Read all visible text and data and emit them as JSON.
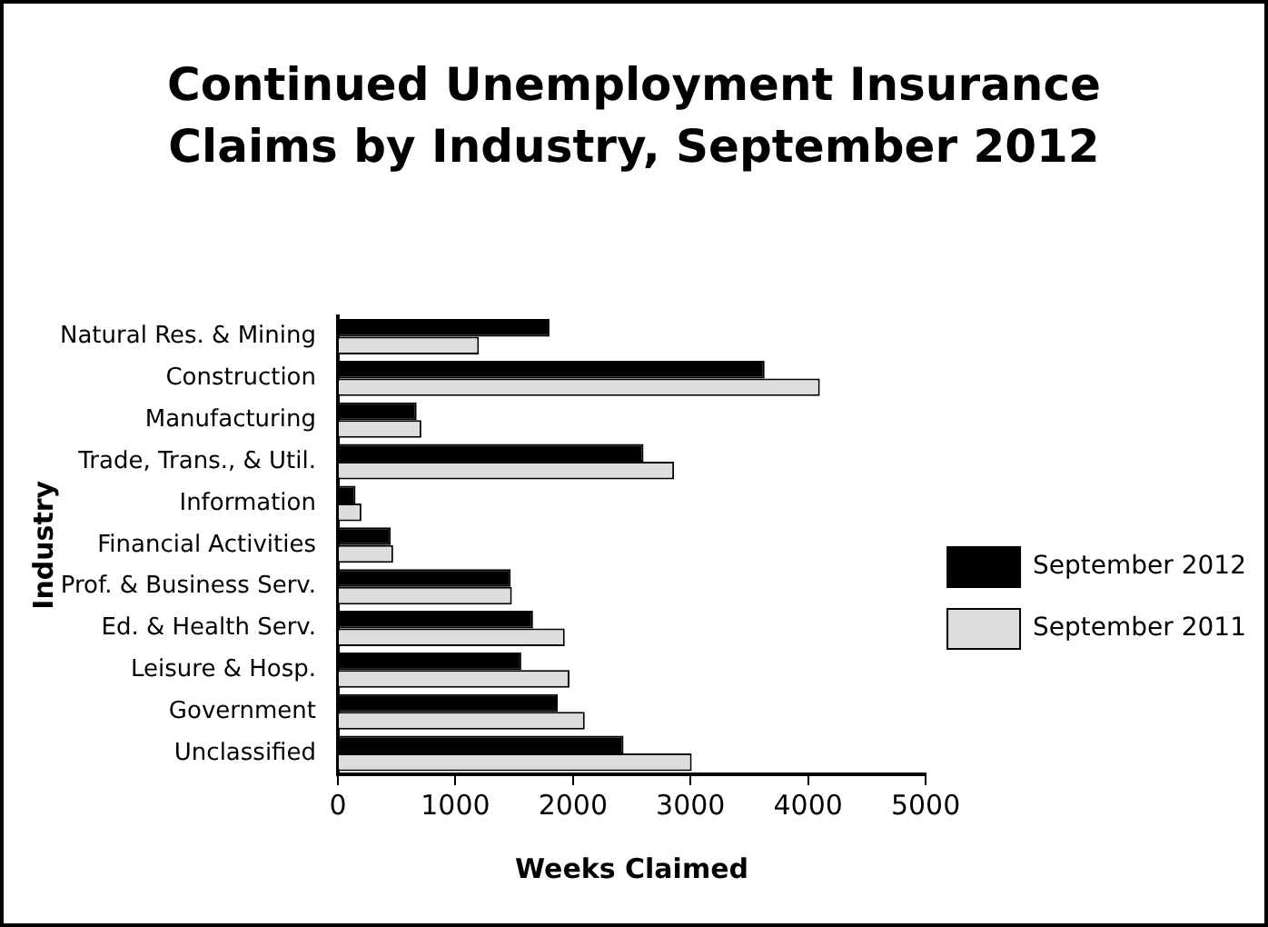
{
  "chart_data": {
    "type": "bar",
    "orientation": "horizontal",
    "title": "Continued Unemployment Insurance Claims by Industry, September 2012",
    "xlabel": "Weeks Claimed",
    "ylabel": "Industry",
    "categories": [
      "Natural Res. & Mining",
      "Construction",
      "Manufacturing",
      "Trade, Trans., & Util.",
      "Information",
      "Financial Activities",
      "Prof. & Business Serv.",
      "Ed. & Health Serv.",
      "Leisure & Hosp.",
      "Government",
      "Unclassified"
    ],
    "series": [
      {
        "name": "September 2012",
        "color": "#000000",
        "values": [
          1800,
          3630,
          670,
          2600,
          150,
          450,
          1470,
          1660,
          1560,
          1870,
          2430
        ]
      },
      {
        "name": "September 2011",
        "color": "#dddddd",
        "values": [
          1200,
          4100,
          710,
          2860,
          200,
          470,
          1480,
          1930,
          1970,
          2100,
          3010
        ]
      }
    ],
    "xlim": [
      0,
      5000
    ],
    "xticks": [
      0,
      1000,
      2000,
      3000,
      4000,
      5000
    ],
    "grid": false,
    "legend": "right"
  }
}
